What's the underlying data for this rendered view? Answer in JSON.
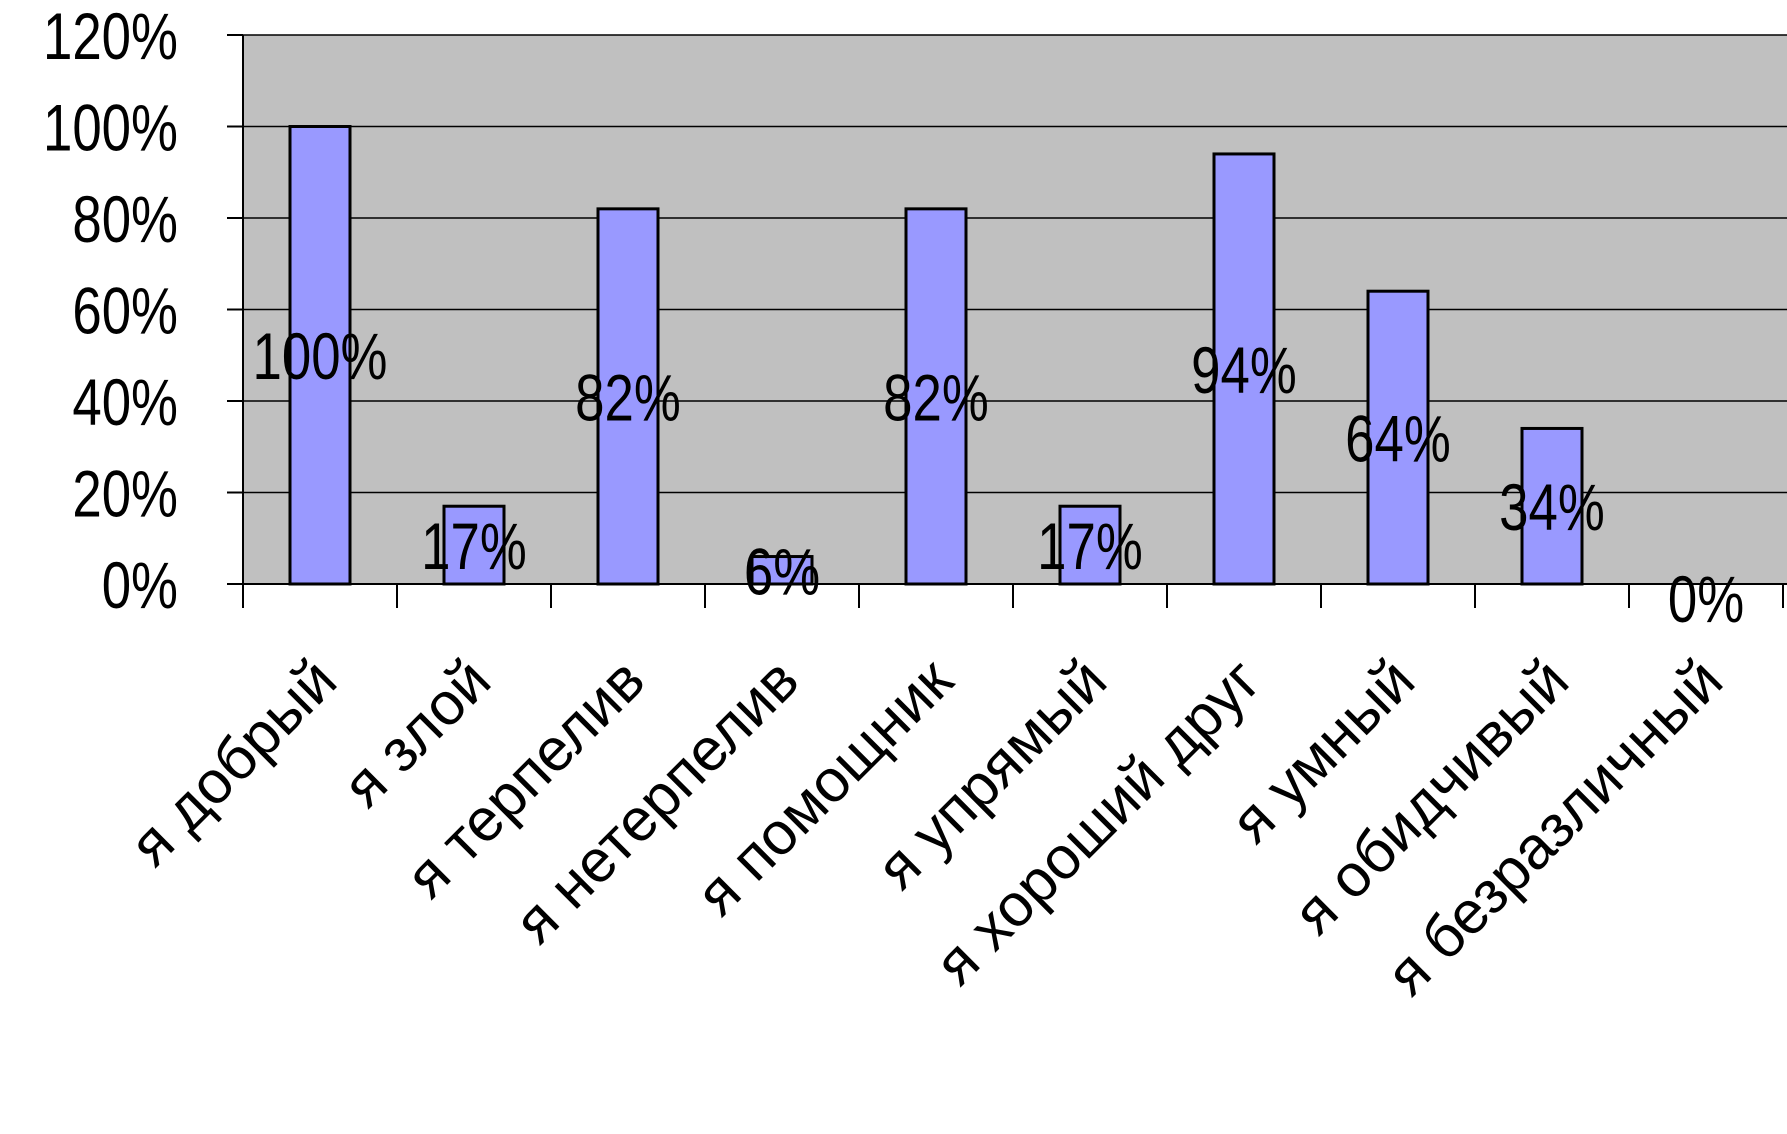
{
  "chart_data": {
    "type": "bar",
    "categories": [
      "я добрый",
      "я злой",
      "я терпелив",
      "я нетерпелив",
      "я помощник",
      "я упрямый",
      "я хороший друг",
      "я умный",
      "я обидчивый",
      "я безразличный"
    ],
    "values": [
      100,
      17,
      82,
      6,
      82,
      17,
      94,
      64,
      34,
      0
    ],
    "data_labels": [
      "100%",
      "17%",
      "82%",
      "6%",
      "82%",
      "17%",
      "94%",
      "64%",
      "34%",
      "0%"
    ],
    "y_ticks": [
      "0%",
      "20%",
      "40%",
      "60%",
      "80%",
      "100%",
      "120%"
    ],
    "ylim": [
      0,
      120
    ],
    "grid": true,
    "title": "",
    "xlabel": "",
    "ylabel": "",
    "colors": {
      "plot_area": "#c0c0c0",
      "bar_fill": "#9999ff",
      "bar_stroke": "#000000",
      "gridline": "#000000"
    }
  }
}
